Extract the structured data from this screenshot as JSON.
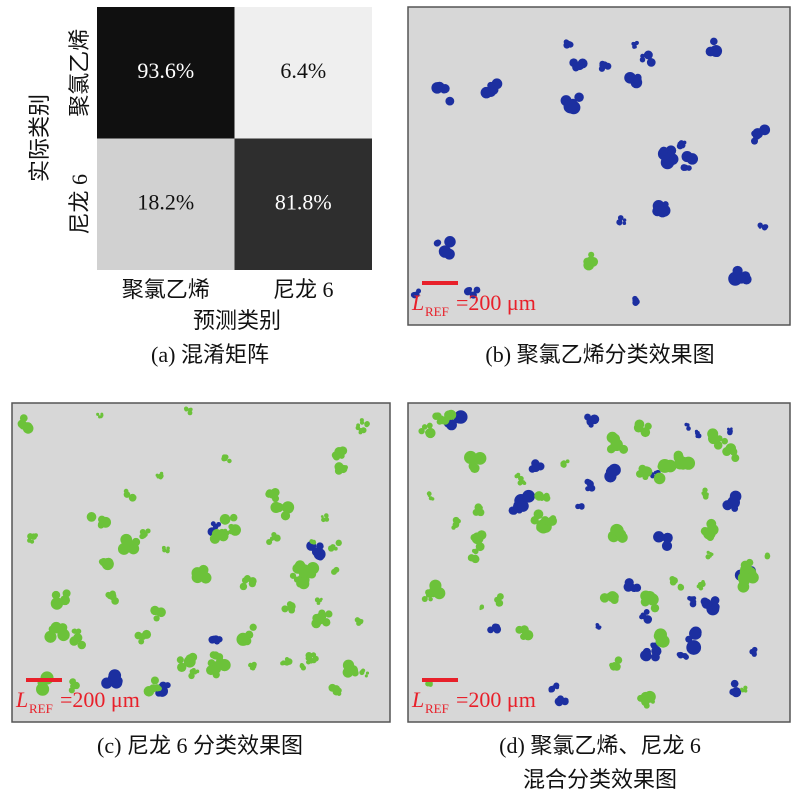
{
  "chart_data": {
    "type": "heatmap",
    "columns": [
      "聚氯乙烯",
      "尼龙 6"
    ],
    "rows": [
      "聚氯乙烯",
      "尼龙 6"
    ],
    "values": [
      [
        93.6,
        6.4
      ],
      [
        18.2,
        81.8
      ]
    ],
    "value_labels": [
      [
        "93.6%",
        "6.4%"
      ],
      [
        "18.2%",
        "81.8%"
      ]
    ],
    "xlabel": "预测类别",
    "ylabel": "实际类别",
    "caption": "(a) 混淆矩阵"
  },
  "panels": [
    {
      "caption": [
        "(b) 聚氯乙烯分类效果图"
      ],
      "scale_bar": {
        "symbol": "L",
        "subscript": "REF",
        "text": "=200 μm"
      }
    },
    {
      "caption": [
        "(c) 尼龙 6 分类效果图"
      ],
      "scale_bar": {
        "symbol": "L",
        "subscript": "REF",
        "text": "=200 μm"
      }
    },
    {
      "caption": [
        "(d) 聚氯乙烯、尼龙 6",
        "混合分类效果图"
      ],
      "scale_bar": {
        "symbol": "L",
        "subscript": "REF",
        "text": "=200 μm"
      }
    }
  ]
}
